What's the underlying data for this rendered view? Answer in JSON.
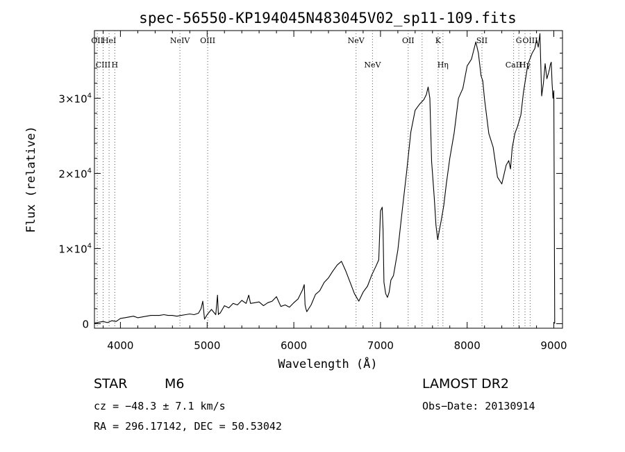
{
  "chart_data": {
    "type": "line",
    "title": "spec-56550-KP194045N483045V02_sp11-109.fits",
    "xlabel": "Wavelength (Å)",
    "ylabel": "Flux (relative)",
    "xlim": [
      3700,
      9100
    ],
    "ylim": [
      -600,
      39000
    ],
    "xticks": [
      4000,
      5000,
      6000,
      7000,
      8000,
      9000
    ],
    "yticks": [
      {
        "value": 0,
        "mant": "0",
        "exp": ""
      },
      {
        "value": 10000,
        "mant": "1×10",
        "exp": "4"
      },
      {
        "value": 20000,
        "mant": "2×10",
        "exp": "4"
      },
      {
        "value": 30000,
        "mant": "3×10",
        "exp": "4"
      }
    ],
    "grid": false,
    "legend": "none",
    "series": [
      {
        "x": [
          3700,
          3750,
          3800,
          3850,
          3900,
          3950,
          4000,
          4050,
          4100,
          4150,
          4200,
          4250,
          4300,
          4350,
          4400,
          4450,
          4500,
          4550,
          4600,
          4650,
          4700,
          4750,
          4800,
          4850,
          4900,
          4930,
          4950,
          4970,
          4990,
          5000,
          5050,
          5100,
          5120,
          5130,
          5140,
          5150,
          5200,
          5250,
          5300,
          5350,
          5400,
          5450,
          5480,
          5500,
          5550,
          5600,
          5650,
          5700,
          5750,
          5800,
          5850,
          5900,
          5950,
          6000,
          6050,
          6100,
          6120,
          6130,
          6140,
          6150,
          6200,
          6250,
          6300,
          6350,
          6400,
          6450,
          6500,
          6550,
          6600,
          6650,
          6700,
          6750,
          6800,
          6850,
          6900,
          6950,
          6980,
          7000,
          7020,
          7030,
          7040,
          7060,
          7080,
          7100,
          7120,
          7150,
          7200,
          7250,
          7300,
          7350,
          7400,
          7450,
          7500,
          7530,
          7550,
          7570,
          7590,
          7600,
          7620,
          7640,
          7660,
          7680,
          7700,
          7730,
          7760,
          7800,
          7850,
          7900,
          7950,
          8000,
          8050,
          8100,
          8130,
          8160,
          8180,
          8200,
          8250,
          8300,
          8350,
          8400,
          8450,
          8480,
          8500,
          8520,
          8550,
          8580,
          8620,
          8650,
          8700,
          8750,
          8780,
          8800,
          8820,
          8840,
          8860,
          8880,
          8900,
          8920,
          8940,
          8950,
          8960,
          8970,
          8980,
          8990,
          9000,
          9010
        ],
        "y": [
          100,
          200,
          300,
          150,
          400,
          300,
          700,
          800,
          900,
          1000,
          800,
          900,
          1000,
          1100,
          1100,
          1100,
          1200,
          1100,
          1100,
          1000,
          1100,
          1200,
          1300,
          1200,
          1400,
          2000,
          3000,
          600,
          1000,
          1200,
          1900,
          1200,
          3800,
          1200,
          1400,
          1400,
          2400,
          2100,
          2700,
          2500,
          3100,
          2700,
          3800,
          2700,
          2800,
          2900,
          2400,
          2800,
          3000,
          3600,
          2300,
          2500,
          2200,
          2800,
          3300,
          4500,
          5200,
          2500,
          2000,
          1600,
          2500,
          3900,
          4400,
          5500,
          6100,
          7000,
          7800,
          8300,
          7000,
          5500,
          4000,
          3000,
          4200,
          5000,
          6500,
          7700,
          8500,
          15000,
          15500,
          12500,
          5500,
          4000,
          3500,
          4200,
          5800,
          6400,
          9800,
          15000,
          20000,
          25500,
          28400,
          29200,
          29800,
          30500,
          31500,
          30000,
          21600,
          20000,
          16800,
          13100,
          11200,
          12500,
          13700,
          15700,
          18600,
          22000,
          25400,
          30000,
          31300,
          34300,
          35200,
          37500,
          36000,
          33000,
          32300,
          29900,
          25300,
          23500,
          19500,
          18600,
          21100,
          21700,
          20600,
          23400,
          25300,
          26200,
          27800,
          30800,
          34500,
          36000,
          36600,
          37800,
          36800,
          38600,
          30300,
          32000,
          34600,
          32600,
          33400,
          33900,
          34500,
          34800,
          32000,
          30000,
          31000,
          0
        ]
      }
    ],
    "lines": {
      "top": [
        {
          "x": 3733,
          "label": "OII"
        },
        {
          "x": 3869,
          "label": "HeI"
        },
        {
          "x": 5007,
          "label": "OIII"
        },
        {
          "x": 4686,
          "label": "NeIV"
        },
        {
          "x": 6718,
          "label": "NeV"
        },
        {
          "x": 7320,
          "label": "OII"
        },
        {
          "x": 7665,
          "label": "K"
        },
        {
          "x": 8171,
          "label": "SII"
        },
        {
          "x": 8596,
          "label": "G"
        },
        {
          "x": 8727,
          "label": "OIII"
        }
      ],
      "bottom": [
        {
          "x": 3800,
          "label": "CIII"
        },
        {
          "x": 3935,
          "label": "H"
        },
        {
          "x": 6908,
          "label": "NeV"
        },
        {
          "x": 7720,
          "label": "Hη"
        },
        {
          "x": 8536,
          "label": "CaII"
        },
        {
          "x": 8667,
          "label": "Hγ"
        }
      ],
      "line_positions": [
        3733,
        3800,
        3869,
        3935,
        4686,
        5007,
        6718,
        6908,
        7320,
        7480,
        7665,
        7720,
        8171,
        8536,
        8596,
        8667,
        8727
      ]
    }
  },
  "info": {
    "class": "STAR",
    "subclass": "M6",
    "survey": "LAMOST DR2",
    "cz": "cz = −48.3 ± 7.1 km/s",
    "obs_date": "Obs−Date: 20130914",
    "radec": "RA = 296.17142, DEC =  50.53042"
  }
}
